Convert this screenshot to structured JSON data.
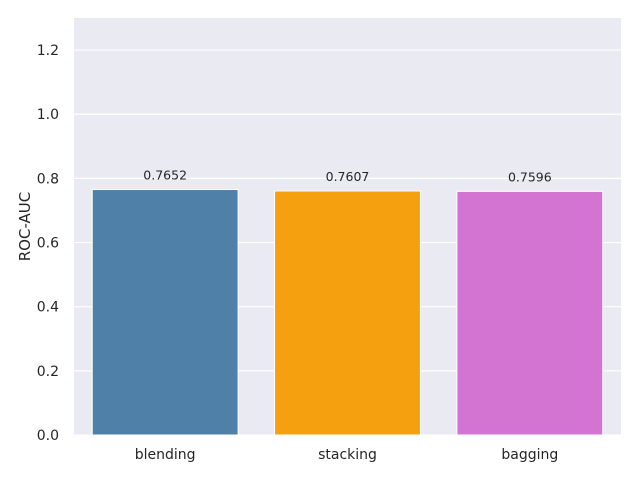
{
  "chart_data": {
    "type": "bar",
    "categories": [
      "blending",
      "stacking",
      "bagging"
    ],
    "values": [
      0.7652,
      0.7607,
      0.7596
    ],
    "data_labels": [
      "0.7652",
      "0.7607",
      "0.7596"
    ],
    "colors": [
      "#4f81a8",
      "#f4a00f",
      "#d474d2"
    ],
    "xlabel": "",
    "ylabel": "ROC-AUC",
    "ylim": [
      0,
      1.3
    ],
    "yticks": [
      0.0,
      0.2,
      0.4,
      0.6,
      0.8,
      1.0,
      1.2
    ],
    "ytick_labels": [
      "0.0",
      "0.2",
      "0.4",
      "0.6",
      "0.8",
      "1.0",
      "1.2"
    ],
    "grid": true,
    "background": "#eaeaf2"
  }
}
